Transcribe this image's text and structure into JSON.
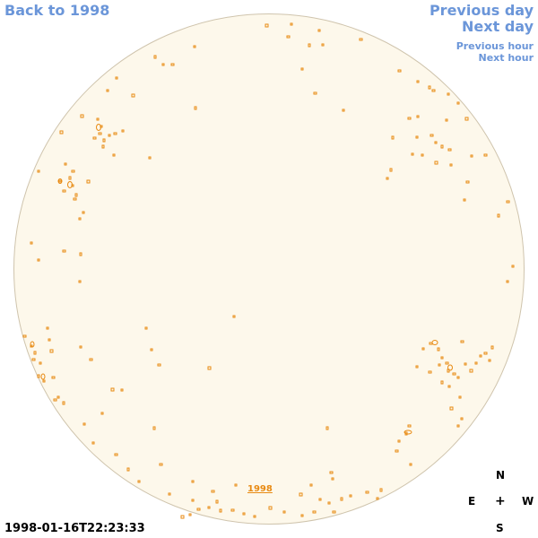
{
  "nav": {
    "back_label": "Back to 1998",
    "previous_day_label": "Previous day",
    "next_day_label": "Next day",
    "previous_hour_label": "Previous hour",
    "next_hour_label": "Next hour"
  },
  "year_link_label": "1998",
  "timestamp": "1998-01-16T22:23:33",
  "compass": {
    "north": "N",
    "east": "E",
    "center": "+",
    "west": "W",
    "south": "S"
  },
  "colors": {
    "link": "#6b96d9",
    "disk_fill": "#fdf8eb",
    "disk_border": "#cfc4ad",
    "feature": "#e88a12"
  }
}
